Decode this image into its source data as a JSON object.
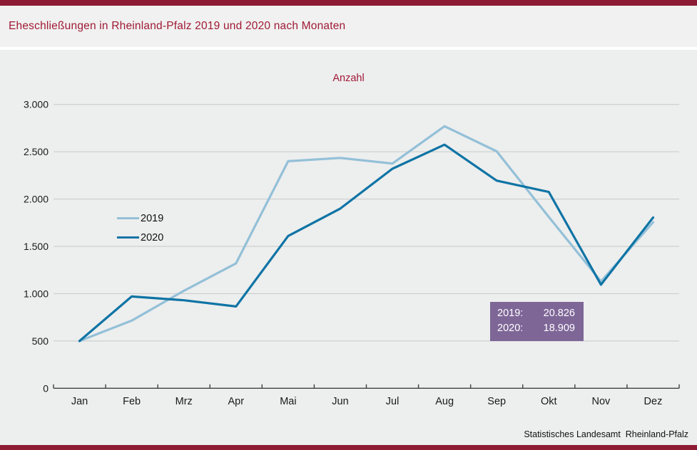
{
  "header": {
    "title": "Eheschließungen in Rheinland-Pfalz 2019 und 2020 nach Monaten"
  },
  "footer": {
    "source": "Statistisches Landesamt  Rheinland-Pfalz"
  },
  "colors": {
    "accent_red": "#8c1b33",
    "title_red": "#a01935",
    "chart_background": "#edeeee",
    "grid": "#c7c9c9",
    "axis": "#404040",
    "box_background": "#7e6697",
    "box_text": "#ffffff",
    "series_2019": "#93c0d8",
    "series_2020": "#0e74a5"
  },
  "totals_box": {
    "rows": [
      {
        "label": "2019:",
        "value": "20.826"
      },
      {
        "label": "2020:",
        "value": "18.909"
      }
    ]
  },
  "chart_data": {
    "type": "line",
    "title": "Eheschließungen in Rheinland-Pfalz 2019 und 2020 nach Monaten",
    "axis_title": "Anzahl",
    "categories": [
      "Jan",
      "Feb",
      "Mrz",
      "Apr",
      "Mai",
      "Jun",
      "Jul",
      "Aug",
      "Sep",
      "Okt",
      "Nov",
      "Dez"
    ],
    "series": [
      {
        "name": "2019",
        "color": "#93c0d8",
        "values": [
          500,
          715,
          1030,
          1320,
          2400,
          2435,
          2375,
          2770,
          2505,
          1810,
          1130,
          1755
        ],
        "annual_total": "20.826"
      },
      {
        "name": "2020",
        "color": "#0e74a5",
        "values": [
          500,
          970,
          930,
          865,
          1610,
          1900,
          2320,
          2575,
          2195,
          2075,
          1095,
          1805
        ],
        "annual_total": "18.909"
      }
    ],
    "ylim": [
      0,
      3000
    ],
    "y_ticks": [
      {
        "v": 0,
        "label": "0"
      },
      {
        "v": 500,
        "label": "500"
      },
      {
        "v": 1000,
        "label": "1.000"
      },
      {
        "v": 1500,
        "label": "1.500"
      },
      {
        "v": 2000,
        "label": "2.000"
      },
      {
        "v": 2500,
        "label": "2.500"
      },
      {
        "v": 3000,
        "label": "3.000"
      }
    ],
    "xlabel": "",
    "ylabel": "Anzahl",
    "grid": true,
    "legend_position": "upper-left-inside"
  }
}
